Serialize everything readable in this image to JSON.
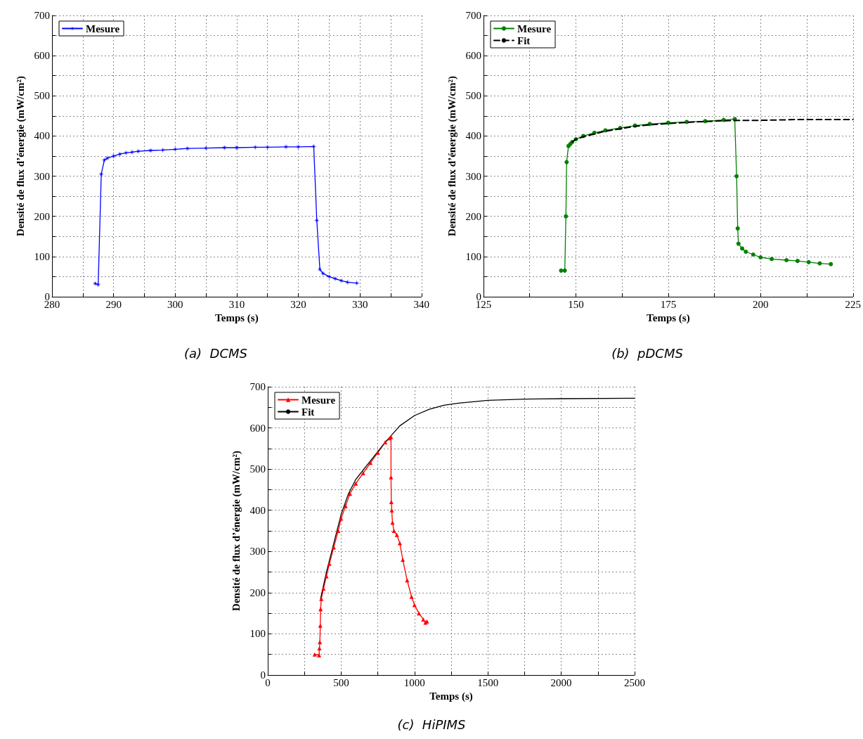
{
  "chart_data": [
    {
      "type": "line",
      "title": "(a)  DCMS",
      "xlabel": "Temps (s)",
      "ylabel": "Densité de flux d’énergie (mW/cm²)",
      "legend": "top left",
      "grid": true,
      "marker": "star",
      "line_style": "solid",
      "xlim": [
        280,
        340
      ],
      "xticks": [
        280,
        {
          "value": 285,
          "label": null
        },
        290,
        {
          "value": 295,
          "label": null
        },
        300,
        {
          "value": 305,
          "label": null
        },
        310,
        {
          "value": 315,
          "label": null
        },
        320,
        {
          "value": 325,
          "label": null
        },
        330,
        {
          "value": 335,
          "label": null
        },
        340
      ],
      "ylim": [
        0,
        700
      ],
      "yticks": [
        0,
        {
          "value": 50,
          "label": null
        },
        100,
        {
          "value": 150,
          "label": null
        },
        200,
        {
          "value": 250,
          "label": null
        },
        300,
        {
          "value": 350,
          "label": null
        },
        400,
        {
          "value": 450,
          "label": null
        },
        500,
        {
          "value": 550,
          "label": null
        },
        600,
        {
          "value": 650,
          "label": null
        },
        700
      ],
      "series": [
        {
          "name": "Mesure",
          "color": "#0000ff",
          "x": [
            287,
            287.5,
            288,
            288.5,
            289,
            290,
            291,
            292,
            293,
            294,
            296,
            298,
            300,
            302,
            305,
            308,
            310,
            313,
            315,
            318,
            320,
            322.5,
            323,
            323.5,
            324,
            325,
            326,
            327,
            328,
            329.5
          ],
          "values": [
            33,
            30,
            305,
            340,
            345,
            350,
            355,
            358,
            360,
            362,
            364,
            365,
            367,
            369,
            370,
            371,
            371,
            372,
            372,
            373,
            373,
            374,
            190,
            68,
            58,
            50,
            45,
            40,
            36,
            34
          ]
        }
      ]
    },
    {
      "type": "line",
      "title": "(b)  pDCMS",
      "xlabel": "Temps (s)",
      "ylabel": "Densité de flux d’énergie (mW/cm²)",
      "legend": "top left",
      "grid": true,
      "marker": "circle",
      "xlim": [
        125,
        225
      ],
      "xticks": [
        125,
        {
          "value": 137.5,
          "label": null
        },
        150,
        {
          "value": 162.5,
          "label": null
        },
        175,
        {
          "value": 187.5,
          "label": null
        },
        200,
        {
          "value": 212.5,
          "label": null
        },
        225
      ],
      "ylim": [
        0,
        700
      ],
      "yticks": [
        0,
        {
          "value": 50,
          "label": null
        },
        100,
        {
          "value": 150,
          "label": null
        },
        200,
        {
          "value": 250,
          "label": null
        },
        300,
        {
          "value": 350,
          "label": null
        },
        400,
        {
          "value": 450,
          "label": null
        },
        500,
        {
          "value": 550,
          "label": null
        },
        600,
        {
          "value": 650,
          "label": null
        },
        700
      ],
      "series": [
        {
          "name": "Mesure",
          "color": "#008000",
          "line_style": "solid",
          "x": [
            146,
            147,
            147.3,
            147.5,
            148,
            148.5,
            149,
            150,
            152,
            155,
            158,
            162,
            166,
            170,
            175,
            180,
            185,
            190,
            193,
            193.5,
            193.8,
            194,
            195,
            196,
            198,
            200,
            203,
            207,
            210,
            213,
            216,
            219
          ],
          "values": [
            65,
            65,
            200,
            335,
            375,
            380,
            385,
            392,
            400,
            408,
            414,
            420,
            426,
            430,
            433,
            435,
            437,
            440,
            442,
            300,
            170,
            132,
            120,
            112,
            105,
            98,
            94,
            91,
            89,
            86,
            83,
            81
          ]
        },
        {
          "name": "Fit",
          "color": "#000000",
          "line_style": "dashed",
          "marker": "none",
          "x": [
            149,
            150,
            152,
            155,
            158,
            162,
            166,
            170,
            175,
            180,
            185,
            190,
            195,
            200,
            205,
            210,
            215,
            220,
            225
          ],
          "values": [
            385,
            392,
            398,
            405,
            412,
            418,
            424,
            428,
            431,
            434,
            436,
            438,
            439,
            439,
            440,
            441,
            441,
            441,
            441
          ]
        }
      ]
    },
    {
      "type": "line",
      "title": "(c)  HiPIMS",
      "xlabel": "Temps (s)",
      "ylabel": "Densité de flux d’énergie (mW/cm²)",
      "legend": "top left",
      "grid": true,
      "marker": "triangle",
      "xlim": [
        0,
        2500
      ],
      "xticks": [
        0,
        {
          "value": 250,
          "label": null
        },
        500,
        {
          "value": 750,
          "label": null
        },
        1000,
        {
          "value": 1250,
          "label": null
        },
        1500,
        {
          "value": 1750,
          "label": null
        },
        2000,
        {
          "value": 2250,
          "label": null
        },
        2500
      ],
      "ylim": [
        0,
        700
      ],
      "yticks": [
        0,
        {
          "value": 50,
          "label": null
        },
        100,
        {
          "value": 150,
          "label": null
        },
        200,
        {
          "value": 250,
          "label": null
        },
        300,
        {
          "value": 350,
          "label": null
        },
        400,
        {
          "value": 450,
          "label": null
        },
        500,
        {
          "value": 550,
          "label": null
        },
        600,
        {
          "value": 650,
          "label": null
        },
        700
      ],
      "series": [
        {
          "name": "Mesure",
          "color": "#ff0000",
          "line_style": "solid",
          "x": [
            320,
            350,
            352,
            355,
            358,
            360,
            365,
            380,
            400,
            420,
            450,
            480,
            500,
            530,
            560,
            600,
            650,
            700,
            750,
            800,
            830,
            840,
            840,
            842,
            845,
            850,
            860,
            880,
            900,
            920,
            950,
            980,
            1000,
            1030,
            1060,
            1075,
            1085
          ],
          "values": [
            50,
            48,
            65,
            80,
            120,
            160,
            185,
            210,
            240,
            270,
            310,
            350,
            380,
            410,
            440,
            465,
            490,
            515,
            540,
            565,
            575,
            578,
            480,
            420,
            400,
            370,
            350,
            340,
            320,
            280,
            230,
            190,
            170,
            150,
            135,
            127,
            130
          ]
        },
        {
          "name": "Fit",
          "color": "#000000",
          "line_style": "solid",
          "marker": "none",
          "x": [
            360,
            400,
            450,
            500,
            550,
            600,
            700,
            800,
            850,
            900,
            1000,
            1100,
            1200,
            1300,
            1500,
            1750,
            2000,
            2500
          ],
          "values": [
            185,
            250,
            320,
            390,
            440,
            475,
            520,
            565,
            585,
            605,
            630,
            645,
            655,
            660,
            667,
            670,
            671,
            672
          ]
        }
      ]
    }
  ]
}
